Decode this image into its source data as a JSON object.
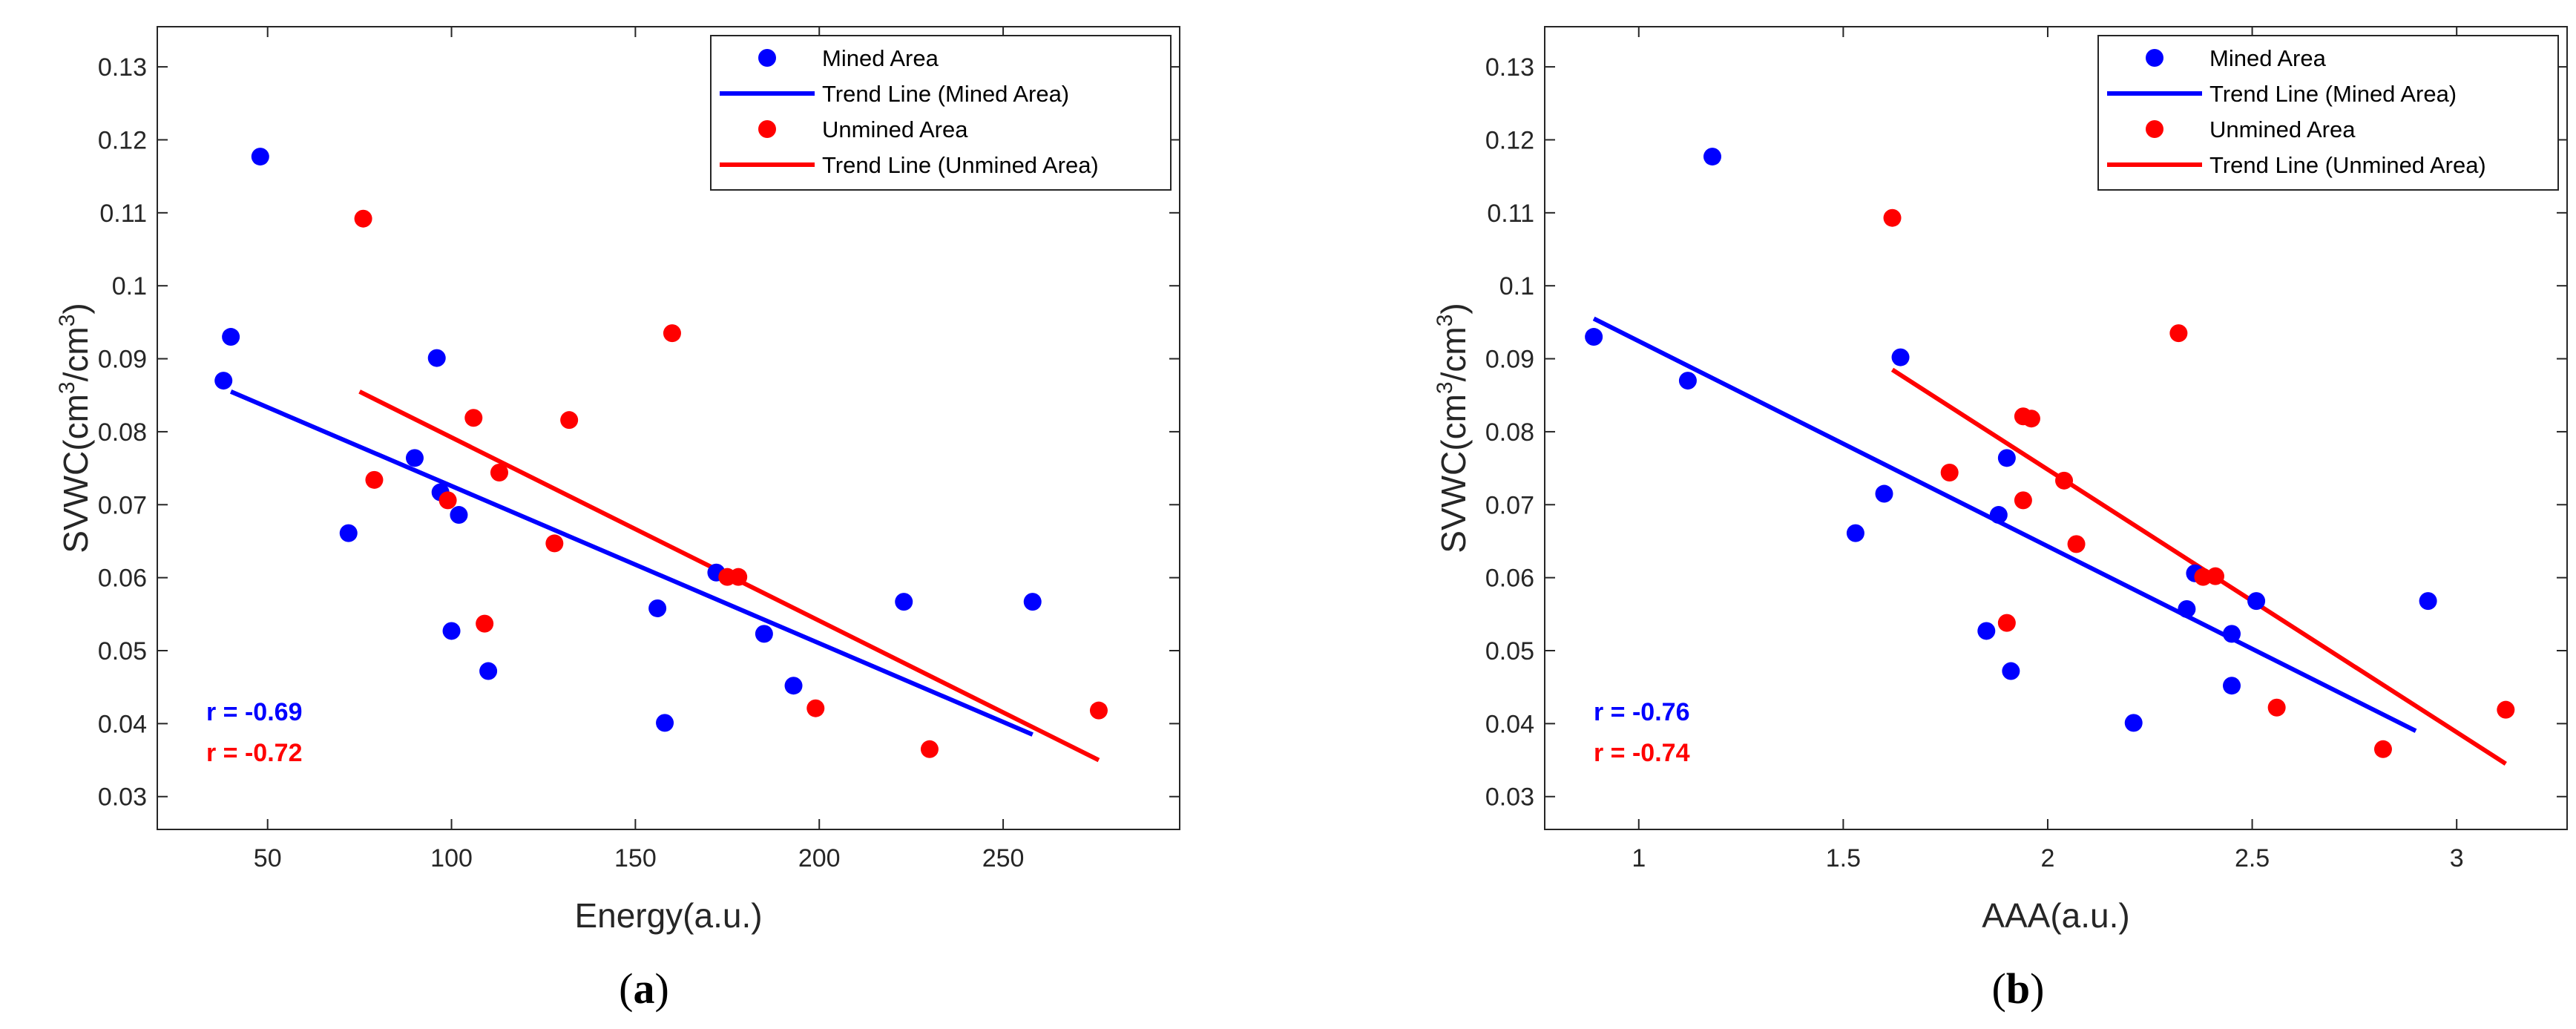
{
  "chart_data": [
    {
      "type": "scatter",
      "panel_label": "a",
      "xlabel": "Energy(a.u.)",
      "ylabel_main": "SVWC(cm",
      "ylabel_sup1": "3",
      "ylabel_mid": "/cm",
      "ylabel_sup2": "3",
      "ylabel_end": ")",
      "xlim": [
        20,
        298
      ],
      "ylim": [
        0.0255,
        0.1355
      ],
      "xticks": [
        50,
        100,
        150,
        200,
        250
      ],
      "xtick_labels": [
        "50",
        "100",
        "150",
        "200",
        "250"
      ],
      "yticks": [
        0.03,
        0.04,
        0.05,
        0.06,
        0.07,
        0.08,
        0.09,
        0.1,
        0.11,
        0.12,
        0.13
      ],
      "ytick_labels": [
        "0.03",
        "0.04",
        "0.05",
        "0.06",
        "0.07",
        "0.08",
        "0.09",
        "0.1",
        "0.11",
        "0.12",
        "0.13"
      ],
      "legend": {
        "position": "top-right",
        "entries": [
          "Mined Area",
          "Trend Line (Mined Area)",
          "Unmined Area",
          "Trend Line (Unmined Area)"
        ]
      },
      "series": [
        {
          "name": "Mined Area",
          "kind": "points",
          "color": "#0000ff",
          "points": [
            [
              38,
              0.087
            ],
            [
              40,
              0.093
            ],
            [
              48,
              0.1177
            ],
            [
              72,
              0.0661
            ],
            [
              90,
              0.0764
            ],
            [
              96,
              0.0901
            ],
            [
              97,
              0.0717
            ],
            [
              100,
              0.0527
            ],
            [
              102,
              0.0686
            ],
            [
              110,
              0.0472
            ],
            [
              156,
              0.0558
            ],
            [
              158,
              0.0401
            ],
            [
              172,
              0.0607
            ],
            [
              185,
              0.0523
            ],
            [
              193,
              0.0452
            ],
            [
              223,
              0.0567
            ],
            [
              258,
              0.0567
            ]
          ]
        },
        {
          "name": "Trend Line (Mined Area)",
          "kind": "line",
          "color": "#0000ff",
          "points": [
            [
              40,
              0.0855
            ],
            [
              258,
              0.0385
            ]
          ]
        },
        {
          "name": "Unmined Area",
          "kind": "points",
          "color": "#ff0000",
          "points": [
            [
              76,
              0.1092
            ],
            [
              79,
              0.0734
            ],
            [
              99,
              0.0706
            ],
            [
              106,
              0.0819
            ],
            [
              109,
              0.0537
            ],
            [
              113,
              0.0744
            ],
            [
              128,
              0.0647
            ],
            [
              132,
              0.0816
            ],
            [
              160,
              0.0935
            ],
            [
              175,
              0.0601
            ],
            [
              178,
              0.0601
            ],
            [
              199,
              0.0421
            ],
            [
              230,
              0.0365
            ],
            [
              276,
              0.0418
            ]
          ]
        },
        {
          "name": "Trend Line (Unmined Area)",
          "kind": "line",
          "color": "#ff0000",
          "points": [
            [
              75,
              0.0855
            ],
            [
              276,
              0.035
            ]
          ]
        }
      ],
      "annotations": [
        {
          "text": "r = -0.69",
          "color": "#0000ff"
        },
        {
          "text": "r = -0.72",
          "color": "#ff0000"
        }
      ]
    },
    {
      "type": "scatter",
      "panel_label": "b",
      "xlabel": "AAA(a.u.)",
      "ylabel_main": "SVWC(cm",
      "ylabel_sup1": "3",
      "ylabel_mid": "/cm",
      "ylabel_sup2": "3",
      "ylabel_end": ")",
      "xlim": [
        0.77,
        3.27
      ],
      "ylim": [
        0.0255,
        0.1355
      ],
      "xticks": [
        1,
        1.5,
        2,
        2.5,
        3
      ],
      "xtick_labels": [
        "1",
        "1.5",
        "2",
        "2.5",
        "3"
      ],
      "yticks": [
        0.03,
        0.04,
        0.05,
        0.06,
        0.07,
        0.08,
        0.09,
        0.1,
        0.11,
        0.12,
        0.13
      ],
      "ytick_labels": [
        "0.03",
        "0.04",
        "0.05",
        "0.06",
        "0.07",
        "0.08",
        "0.09",
        "0.1",
        "0.11",
        "0.12",
        "0.13"
      ],
      "legend": {
        "position": "top-right",
        "entries": [
          "Mined Area",
          "Trend Line (Mined Area)",
          "Unmined Area",
          "Trend Line (Unmined Area)"
        ]
      },
      "series": [
        {
          "name": "Mined Area",
          "kind": "points",
          "color": "#0000ff",
          "points": [
            [
              0.89,
              0.093
            ],
            [
              1.12,
              0.087
            ],
            [
              1.18,
              0.1177
            ],
            [
              1.53,
              0.0661
            ],
            [
              1.6,
              0.0715
            ],
            [
              1.64,
              0.0902
            ],
            [
              1.85,
              0.0527
            ],
            [
              1.88,
              0.0686
            ],
            [
              1.9,
              0.0764
            ],
            [
              1.91,
              0.0472
            ],
            [
              2.21,
              0.0401
            ],
            [
              2.34,
              0.0557
            ],
            [
              2.36,
              0.0606
            ],
            [
              2.45,
              0.0523
            ],
            [
              2.45,
              0.0452
            ],
            [
              2.51,
              0.0568
            ],
            [
              2.93,
              0.0568
            ]
          ]
        },
        {
          "name": "Trend Line (Mined Area)",
          "kind": "line",
          "color": "#0000ff",
          "points": [
            [
              0.89,
              0.0955
            ],
            [
              2.9,
              0.039
            ]
          ]
        },
        {
          "name": "Unmined Area",
          "kind": "points",
          "color": "#ff0000",
          "points": [
            [
              1.62,
              0.1093
            ],
            [
              1.76,
              0.0744
            ],
            [
              1.9,
              0.0538
            ],
            [
              1.94,
              0.0706
            ],
            [
              1.94,
              0.0821
            ],
            [
              1.96,
              0.0818
            ],
            [
              2.04,
              0.0733
            ],
            [
              2.07,
              0.0646
            ],
            [
              2.32,
              0.0935
            ],
            [
              2.38,
              0.0601
            ],
            [
              2.41,
              0.0602
            ],
            [
              2.56,
              0.0422
            ],
            [
              2.82,
              0.0365
            ],
            [
              3.12,
              0.0419
            ]
          ]
        },
        {
          "name": "Trend Line (Unmined Area)",
          "kind": "line",
          "color": "#ff0000",
          "points": [
            [
              1.62,
              0.0885
            ],
            [
              3.12,
              0.0345
            ]
          ]
        }
      ],
      "annotations": [
        {
          "text": "r = -0.76",
          "color": "#0000ff"
        },
        {
          "text": "r = -0.74",
          "color": "#ff0000"
        }
      ]
    }
  ]
}
